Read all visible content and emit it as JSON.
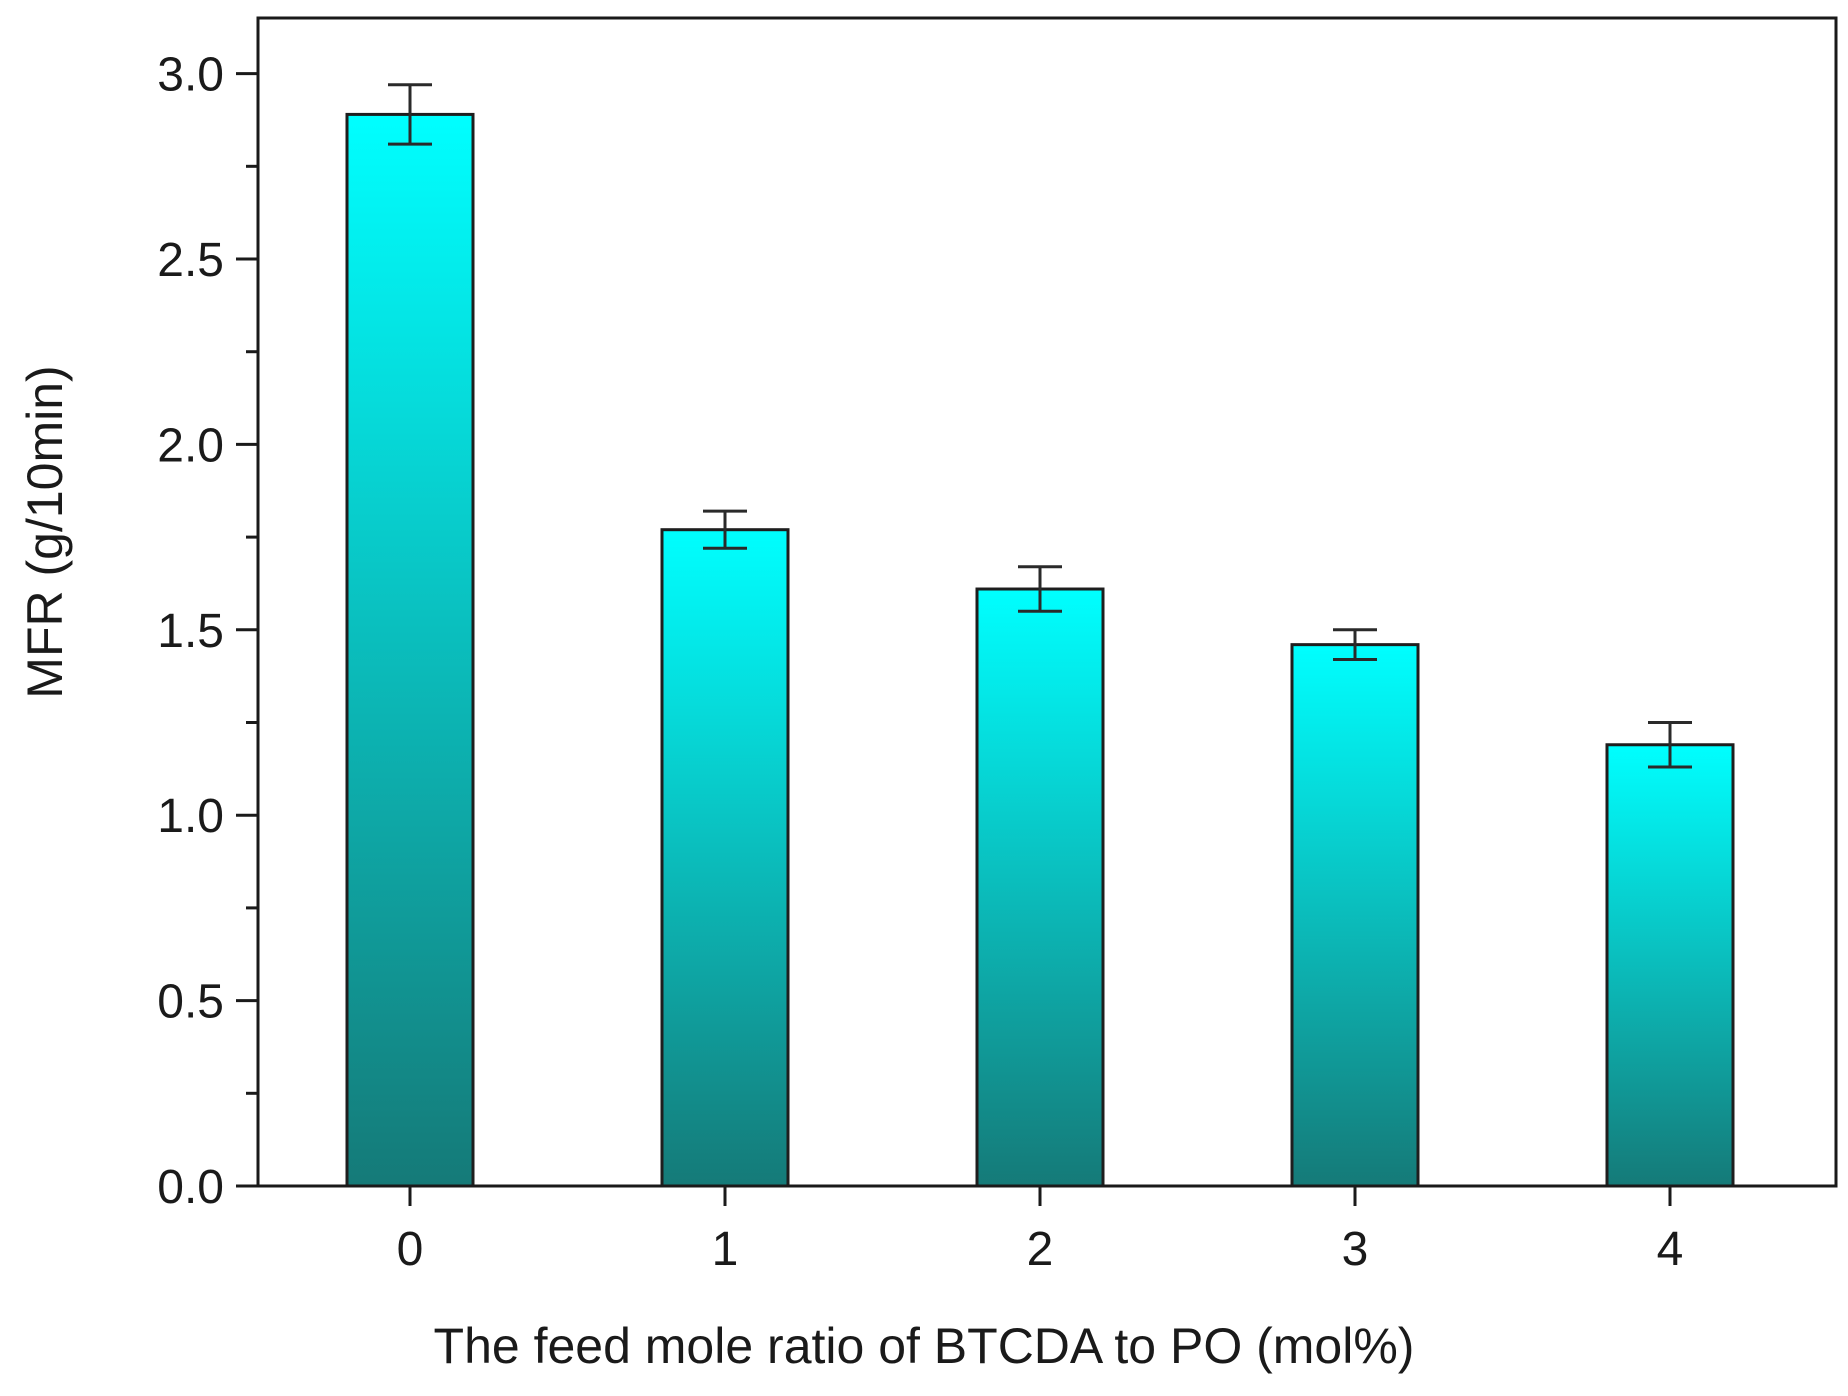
{
  "chart_data": {
    "type": "bar",
    "title": "",
    "xlabel": "The feed mole ratio of BTCDA to PO (mol%)",
    "ylabel": "MFR (g/10min)",
    "categories": [
      "0",
      "1",
      "2",
      "3",
      "4"
    ],
    "values": [
      2.89,
      1.77,
      1.61,
      1.46,
      1.19
    ],
    "errors": [
      0.08,
      0.05,
      0.06,
      0.04,
      0.06
    ],
    "ylim": [
      0.0,
      3.15
    ],
    "yticks": [
      0.0,
      0.5,
      1.0,
      1.5,
      2.0,
      2.5,
      3.0
    ],
    "ytick_labels": [
      "0.0",
      "0.5",
      "1.0",
      "1.5",
      "2.0",
      "2.5",
      "3.0"
    ],
    "grid": false,
    "colors": {
      "bar_top": "#00ffff",
      "bar_bottom": "#157a78",
      "bar_edge": "#1e1e1e",
      "axis": "#1a1a1a"
    }
  }
}
